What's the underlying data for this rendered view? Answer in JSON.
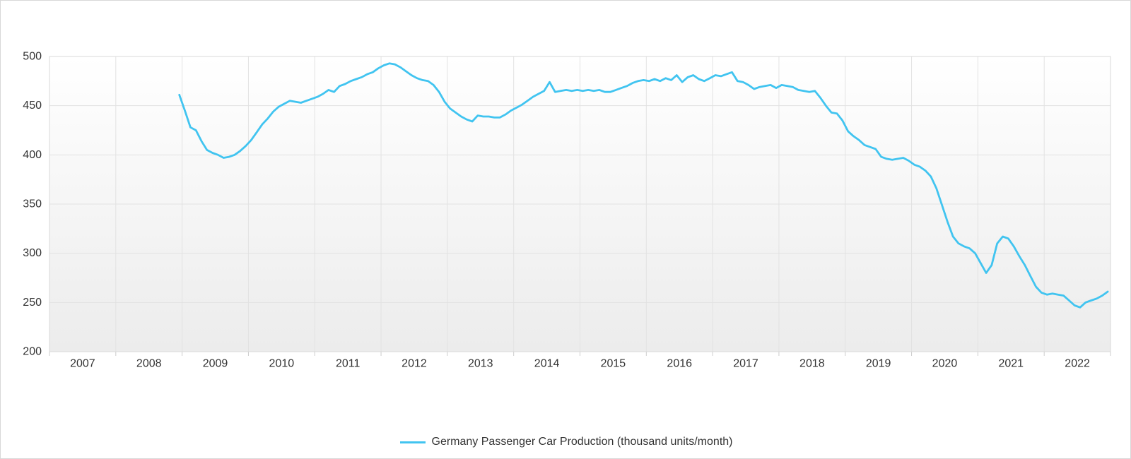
{
  "page": {
    "title": "",
    "background_color": "#ffffff",
    "border_color": "#d8d8d8"
  },
  "chart_data": {
    "type": "line",
    "title": "",
    "xlabel": "",
    "ylabel": "",
    "legend": {
      "label": "Germany Passenger Car Production (thousand units/month)",
      "position": "bottom-center",
      "swatch_color": "#41c4f0"
    },
    "x_axis": {
      "type": "year-bands",
      "categories": [
        "2007",
        "2008",
        "2009",
        "2010",
        "2011",
        "2012",
        "2013",
        "2014",
        "2015",
        "2016",
        "2017",
        "2018",
        "2019",
        "2020",
        "2021",
        "2022"
      ]
    },
    "y_axis": {
      "ticks": [
        200,
        250,
        300,
        350,
        400,
        450,
        500
      ],
      "range": [
        200,
        500
      ]
    },
    "grid": true,
    "styles": {
      "line_color": "#41c4f0",
      "line_width": 2.8,
      "gridline_color": "#e2e2e2",
      "plot_border_color": "#d9d9d9",
      "tick_color": "#cccccc",
      "label_color": "#333333",
      "plot_bg_top": "#ffffff",
      "plot_bg_bottom": "#ececec"
    },
    "series": [
      {
        "name": "Germany Passenger Car Production (thousand units/month)",
        "frequency": "monthly",
        "start": "2008-12",
        "end": "2022-12",
        "values": [
          461,
          445,
          428,
          425,
          414,
          405,
          402,
          400,
          397,
          398,
          400,
          404,
          409,
          415,
          423,
          431,
          437,
          444,
          449,
          452,
          455,
          454,
          453,
          455,
          457,
          459,
          462,
          466,
          464,
          470,
          472,
          475,
          477,
          479,
          482,
          484,
          488,
          491,
          493,
          492,
          489,
          485,
          481,
          478,
          476,
          475,
          471,
          464,
          454,
          447,
          443,
          439,
          436,
          434,
          440,
          439,
          439,
          438,
          438,
          441,
          445,
          448,
          451,
          455,
          459,
          462,
          465,
          474,
          464,
          465,
          466,
          465,
          466,
          465,
          466,
          465,
          466,
          464,
          464,
          466,
          468,
          470,
          473,
          475,
          476,
          475,
          477,
          475,
          478,
          476,
          481,
          474,
          479,
          481,
          477,
          475,
          478,
          481,
          480,
          482,
          484,
          475,
          474,
          471,
          467,
          469,
          470,
          471,
          468,
          471,
          470,
          469,
          466,
          465,
          464,
          465,
          458,
          450,
          443,
          442,
          435,
          424,
          419,
          415,
          410,
          408,
          406,
          398,
          396,
          395,
          396,
          397,
          394,
          390,
          388,
          384,
          378,
          366,
          349,
          332,
          317,
          310,
          307,
          305,
          300,
          290,
          280,
          288,
          310,
          317,
          315,
          307,
          297,
          288,
          277,
          266,
          260,
          258,
          259,
          258,
          257,
          252,
          247,
          245,
          250,
          252,
          254,
          257,
          261
        ]
      }
    ]
  }
}
